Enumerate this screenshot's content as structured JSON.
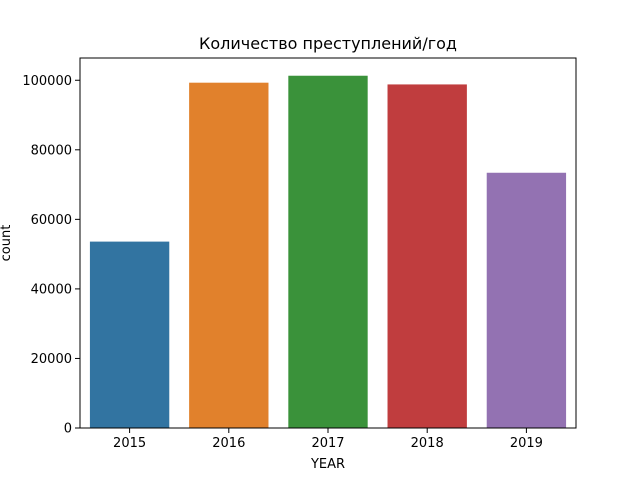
{
  "chart_data": {
    "type": "bar",
    "title": "Количество преступлений/год",
    "xlabel": "YEAR",
    "ylabel": "count",
    "categories": [
      "2015",
      "2016",
      "2017",
      "2018",
      "2019"
    ],
    "values": [
      53600,
      99300,
      101300,
      98800,
      73400
    ],
    "colors": [
      "#3274a1",
      "#e1812c",
      "#3a923a",
      "#c03d3e",
      "#9372b2"
    ],
    "ylim": [
      0,
      106400
    ],
    "yticks": [
      0,
      20000,
      40000,
      60000,
      80000,
      100000
    ],
    "grid": false,
    "legend": "none"
  }
}
